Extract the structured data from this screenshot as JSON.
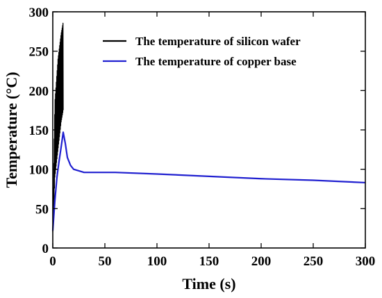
{
  "chart_data": {
    "type": "line",
    "xlabel": "Time (s)",
    "ylabel": "Temperature (°C)",
    "xlim": [
      0,
      300
    ],
    "ylim": [
      0,
      300
    ],
    "xticks": [
      0,
      50,
      100,
      150,
      200,
      250,
      300
    ],
    "yticks": [
      0,
      50,
      100,
      150,
      200,
      250,
      300
    ],
    "xtick_labels": [
      "0",
      "50",
      "100",
      "150",
      "200",
      "250",
      "300"
    ],
    "ytick_labels": [
      "0",
      "50",
      "100",
      "150",
      "200",
      "250",
      "300"
    ],
    "grid": false,
    "legend_position": "top-right",
    "series": [
      {
        "name": "The temperature of silicon wafer",
        "color": "#000000",
        "style": "oscillating",
        "envelope_lower": [
          [
            0,
            20
          ],
          [
            2,
            90
          ],
          [
            5,
            125
          ],
          [
            8,
            160
          ],
          [
            10,
            175
          ]
        ],
        "envelope_upper": [
          [
            0,
            30
          ],
          [
            2,
            185
          ],
          [
            5,
            240
          ],
          [
            8,
            272
          ],
          [
            10,
            287
          ]
        ],
        "oscillation_period": 0.4
      },
      {
        "name": "The temperature of copper base",
        "color": "#1f1fd0",
        "points": [
          [
            0,
            22
          ],
          [
            2,
            60
          ],
          [
            4,
            90
          ],
          [
            6,
            110
          ],
          [
            8,
            128
          ],
          [
            10,
            147
          ],
          [
            12,
            133
          ],
          [
            14,
            115
          ],
          [
            17,
            105
          ],
          [
            20,
            100
          ],
          [
            25,
            98
          ],
          [
            30,
            96
          ],
          [
            60,
            96
          ],
          [
            100,
            94
          ],
          [
            150,
            91
          ],
          [
            200,
            88
          ],
          [
            250,
            86
          ],
          [
            300,
            83
          ]
        ]
      }
    ]
  }
}
